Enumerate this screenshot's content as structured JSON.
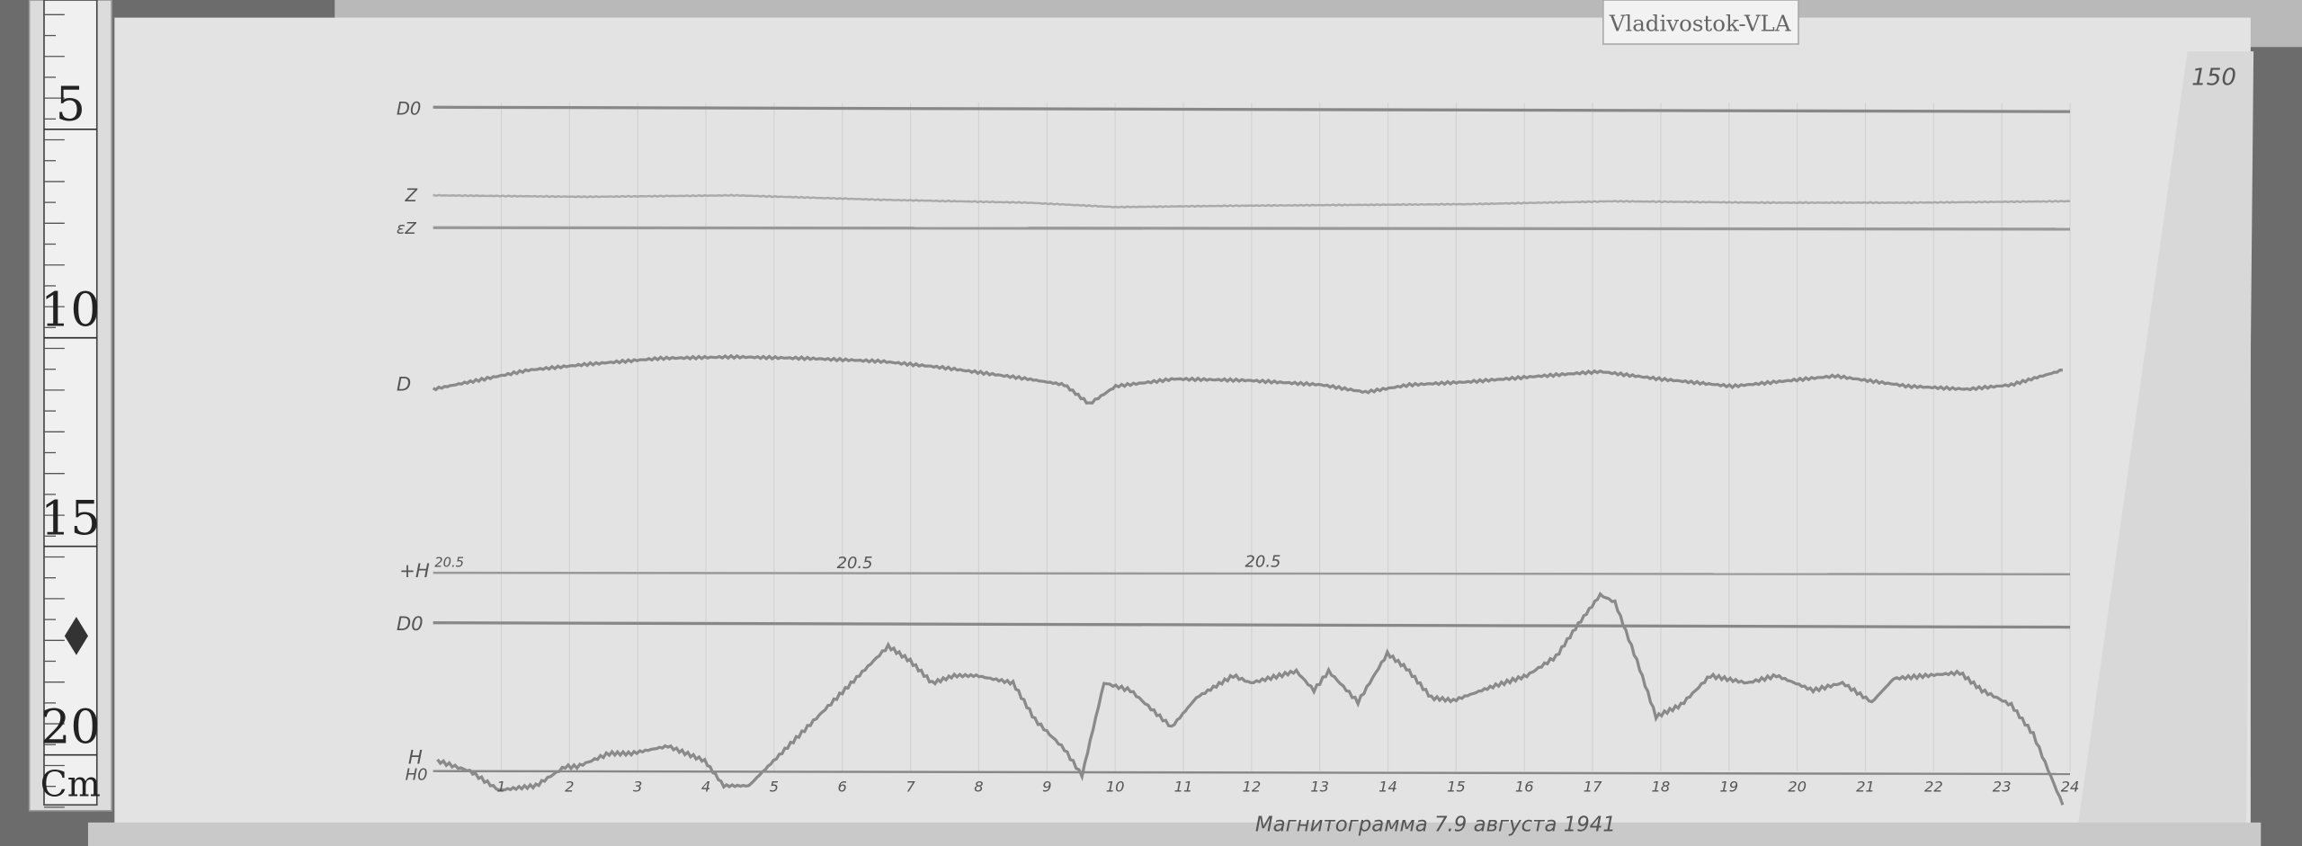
{
  "label_tab": {
    "text": "Vladivostok-VLA"
  },
  "ruler": {
    "marks": [
      "5",
      "10",
      "15",
      "20"
    ],
    "unit": "Cm"
  },
  "sheet_number": "150",
  "trace_labels": {
    "d0_top": "D0",
    "z": "Z",
    "ez": "εZ",
    "d": "D",
    "plus_h": "+H",
    "plus_h_value": "20.5",
    "d0_bottom": "D0",
    "h": "H",
    "h0": "H0"
  },
  "baseline_annotations": [
    "20.5",
    "20.5"
  ],
  "hour_labels": [
    "1",
    "2",
    "3",
    "4",
    "5",
    "6",
    "7",
    "8",
    "9",
    "10",
    "11",
    "12",
    "13",
    "14",
    "15",
    "16",
    "17",
    "18",
    "19",
    "20",
    "21",
    "22",
    "23",
    "24"
  ],
  "footer_handwriting": "Магнитограмма 7.9 августа 1941",
  "colors": {
    "paper": "#e4e4e4",
    "trace": "#8a8a8a",
    "background": "#6f6f6f"
  }
}
